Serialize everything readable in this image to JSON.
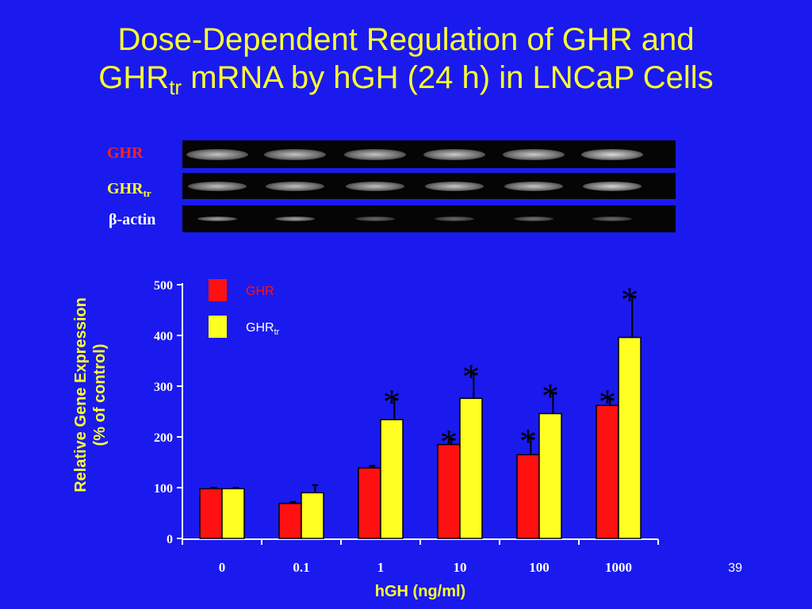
{
  "title": {
    "line1": "Dose-Dependent Regulation of GHR and",
    "line2_prefix": "GHR",
    "line2_sub": "tr",
    "line2_suffix": " mRNA by hGH (24 h) in LNCaP Cells"
  },
  "gel": {
    "rows": [
      {
        "label": "GHR",
        "sub": "",
        "color": "#ff2222"
      },
      {
        "label": "GHR",
        "sub": "tr",
        "color": "#ffff33"
      },
      {
        "label": "β-actin",
        "sub": "",
        "color": "#ffffff"
      }
    ]
  },
  "page_number": "39",
  "colors": {
    "background": "#1a1aee",
    "title": "#ffff33",
    "ghr": "#ff1111",
    "ghr_tr": "#ffff22",
    "axis": "#ffffff",
    "asterisk": "#000000"
  },
  "chart_data": {
    "type": "bar",
    "categories": [
      "0",
      "0.1",
      "1",
      "10",
      "100",
      "1000"
    ],
    "xlabel": "hGH (ng/ml)",
    "ylabel_line1": "Relative Gene Expression",
    "ylabel_line2": "(% of control)",
    "ylim": [
      0,
      500
    ],
    "yticks": [
      0,
      100,
      200,
      300,
      400,
      500
    ],
    "series": [
      {
        "name": "GHR",
        "name_sub": "",
        "values": [
          98,
          69,
          139,
          185,
          165,
          262
        ],
        "errors": [
          2,
          3,
          4,
          10,
          32,
          12
        ],
        "significant": [
          false,
          false,
          false,
          true,
          true,
          true
        ]
      },
      {
        "name": "GHR",
        "name_sub": "tr",
        "values": [
          98,
          90,
          234,
          276,
          246,
          396
        ],
        "errors": [
          2,
          15,
          40,
          48,
          40,
          80
        ],
        "significant": [
          false,
          false,
          true,
          true,
          true,
          true
        ]
      }
    ],
    "significance_marker": "*",
    "legend_position": "top-left",
    "grid": false
  }
}
